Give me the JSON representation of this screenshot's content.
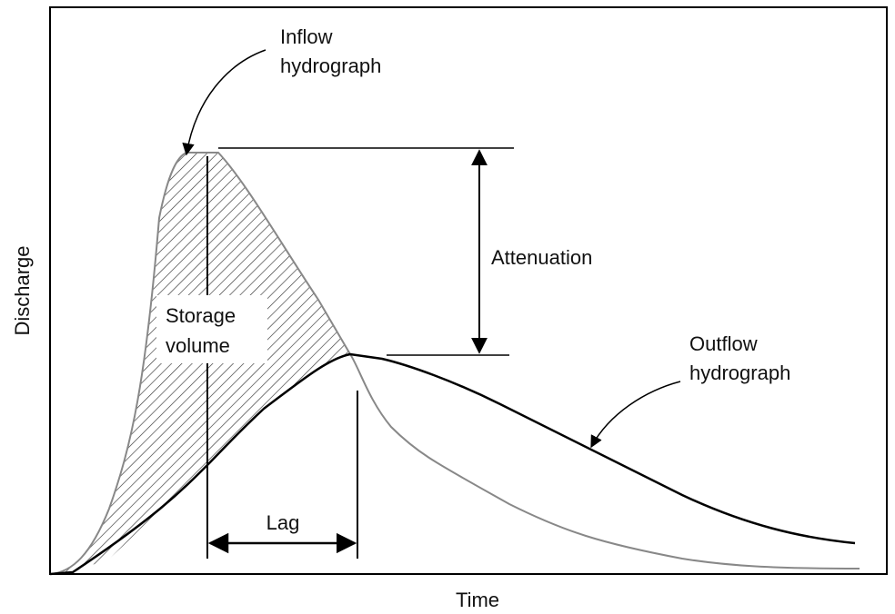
{
  "diagram": {
    "y_axis_label": "Discharge",
    "x_axis_label": "Time",
    "inflow_label": [
      "Inflow",
      "hydrograph"
    ],
    "outflow_label": [
      "Outflow",
      "hydrograph"
    ],
    "attenuation_label": "Attenuation",
    "storage_label": [
      "Storage",
      "volume"
    ],
    "lag_label": "Lag"
  }
}
